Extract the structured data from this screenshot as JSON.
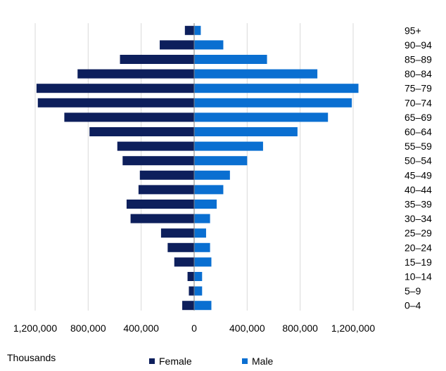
{
  "chart_data": {
    "type": "bar",
    "orientation": "horizontal-population-pyramid",
    "categories": [
      "95+",
      "90–94",
      "85–89",
      "80–84",
      "75–79",
      "70–74",
      "65–69",
      "60–64",
      "55–59",
      "50–54",
      "45–49",
      "40–44",
      "35–39",
      "30–34",
      "25–29",
      "20–24",
      "15–19",
      "10–14",
      "5–9",
      "0–4"
    ],
    "series": [
      {
        "name": "Female",
        "color": "#0d1f5c",
        "side": "left",
        "values": [
          70000,
          260000,
          560000,
          880000,
          1190000,
          1180000,
          980000,
          790000,
          580000,
          540000,
          410000,
          420000,
          510000,
          480000,
          250000,
          200000,
          150000,
          50000,
          40000,
          90000
        ]
      },
      {
        "name": "Male",
        "color": "#0a6fd1",
        "side": "right",
        "values": [
          50000,
          220000,
          550000,
          930000,
          1240000,
          1190000,
          1010000,
          780000,
          520000,
          400000,
          270000,
          220000,
          170000,
          120000,
          90000,
          120000,
          130000,
          60000,
          60000,
          130000
        ]
      }
    ],
    "xticks": [
      "1,200,000",
      "800,000",
      "400,000",
      "0",
      "400,000",
      "800,000",
      "1,200,000"
    ],
    "xtick_values": [
      -1200000,
      -800000,
      -400000,
      0,
      400000,
      800000,
      1200000
    ],
    "xlim": [
      -1200000,
      1200000
    ],
    "units_label": "Thousands",
    "grid": true,
    "legend_position": "bottom"
  }
}
